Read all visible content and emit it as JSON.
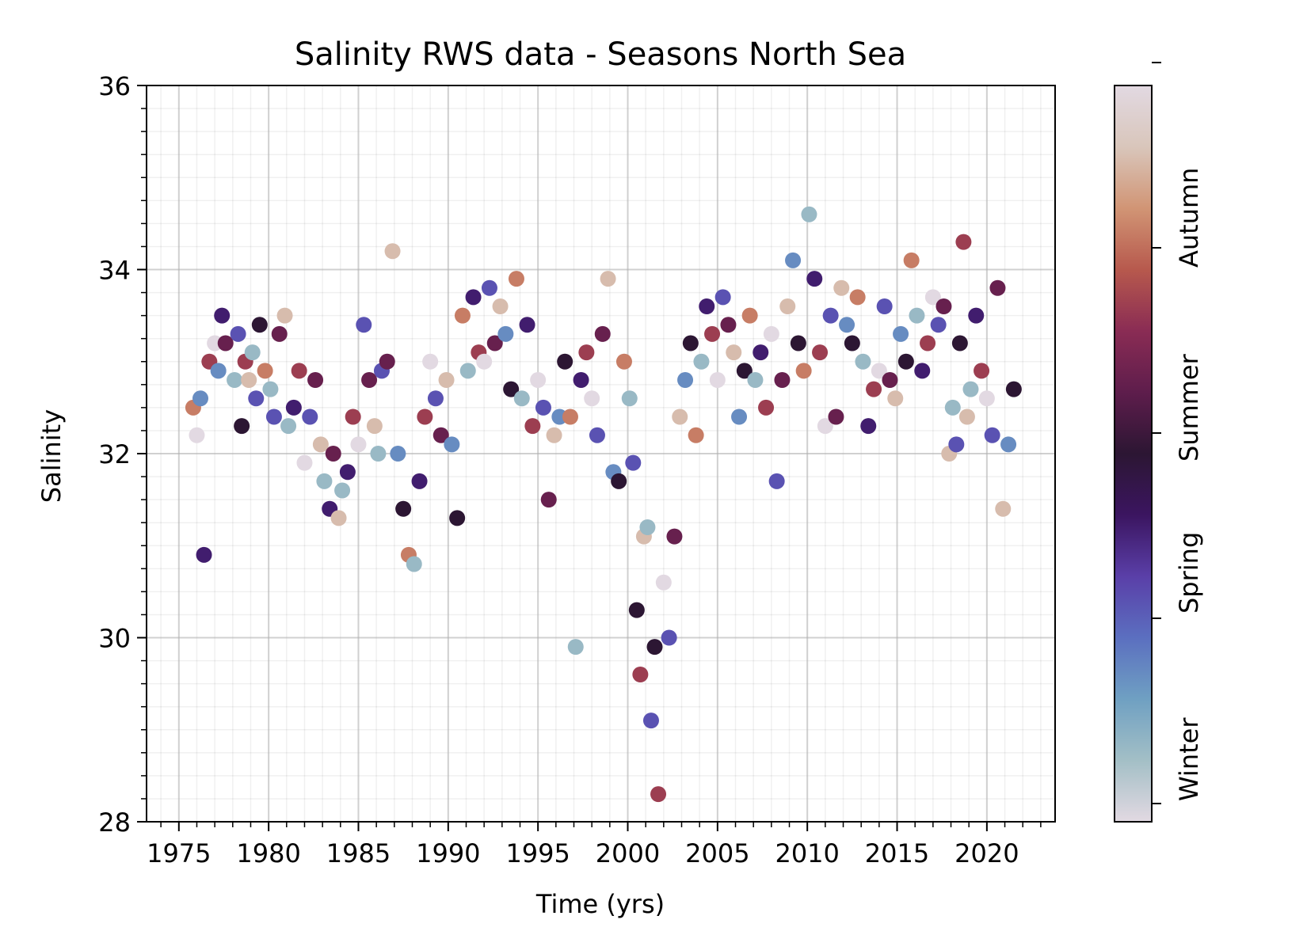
{
  "chart_data": {
    "type": "scatter",
    "title": "Salinity RWS data - Seasons North Sea",
    "xlabel": "Time (yrs)",
    "ylabel": "Salinity",
    "xlim": [
      1973.2,
      2023.8
    ],
    "ylim": [
      28,
      36
    ],
    "x_ticks": [
      1975,
      1980,
      1985,
      1990,
      1995,
      2000,
      2005,
      2010,
      2015,
      2020
    ],
    "y_ticks": [
      28,
      30,
      32,
      34,
      36
    ],
    "grid": true,
    "minor_grid": true,
    "colorbar": {
      "colormap": "twilight-like (winter → spring → summer → autumn)",
      "labels": [
        "Winter",
        "Spring",
        "Summer",
        "Autumn"
      ],
      "stops": [
        "#e2d9e2",
        "#a3bfc6",
        "#6fa0c2",
        "#5b6fc0",
        "#5a3fa8",
        "#3b1560",
        "#2c1633",
        "#5e1d4c",
        "#8a2c54",
        "#b7594d",
        "#d19575",
        "#d9c6bb",
        "#e2d9e2"
      ]
    },
    "series": [
      {
        "x": [
          1975.8,
          1976.0,
          1976.2,
          1976.4,
          1976.7,
          1977.0,
          1977.2,
          1977.4,
          1977.6,
          1978.1,
          1978.3,
          1978.5,
          1978.7,
          1978.9,
          1979.1,
          1979.3,
          1979.5,
          1979.8,
          1980.1,
          1980.3,
          1980.6,
          1980.9,
          1981.1,
          1981.4,
          1981.7,
          1982.0,
          1982.3,
          1982.6,
          1982.9,
          1983.1,
          1983.4,
          1983.6,
          1983.9,
          1984.1,
          1984.4,
          1984.7,
          1985.0,
          1985.3,
          1985.6,
          1985.9,
          1986.1,
          1986.3,
          1986.6,
          1986.9,
          1987.2,
          1987.5,
          1987.8,
          1988.1,
          1988.4,
          1988.7,
          1989.0,
          1989.3,
          1989.6,
          1989.9,
          1990.2,
          1990.5,
          1990.8,
          1991.1,
          1991.4,
          1991.7,
          1992.0,
          1992.3,
          1992.6,
          1992.9,
          1993.2,
          1993.5,
          1993.8,
          1994.1,
          1994.4,
          1994.7,
          1995.0,
          1995.3,
          1995.6,
          1995.9,
          1996.2,
          1996.5,
          1996.8,
          1997.1,
          1997.4,
          1997.7,
          1998.0,
          1998.3,
          1998.6,
          1998.9,
          1999.2,
          1999.5,
          1999.8,
          2000.1,
          2000.3,
          2000.5,
          2000.7,
          2000.9,
          2001.1,
          2001.3,
          2001.5,
          2001.7,
          2002.0,
          2002.3,
          2002.6,
          2002.9,
          2003.2,
          2003.5,
          2003.8,
          2004.1,
          2004.4,
          2004.7,
          2005.0,
          2005.3,
          2005.6,
          2005.9,
          2006.2,
          2006.5,
          2006.8,
          2007.1,
          2007.4,
          2007.7,
          2008.0,
          2008.3,
          2008.6,
          2008.9,
          2009.2,
          2009.5,
          2009.8,
          2010.1,
          2010.4,
          2010.7,
          2011.0,
          2011.3,
          2011.6,
          2011.9,
          2012.2,
          2012.5,
          2012.8,
          2013.1,
          2013.4,
          2013.7,
          2014.0,
          2014.3,
          2014.6,
          2014.9,
          2015.2,
          2015.5,
          2015.8,
          2016.1,
          2016.4,
          2016.7,
          2017.0,
          2017.3,
          2017.6,
          2017.9,
          2018.1,
          2018.3,
          2018.5,
          2018.7,
          2018.9,
          2019.1,
          2019.4,
          2019.7,
          2020.0,
          2020.3,
          2020.6,
          2020.9,
          2021.2,
          2021.5
        ],
        "y": [
          32.5,
          32.2,
          32.6,
          30.9,
          33.0,
          33.2,
          32.9,
          33.5,
          33.2,
          32.8,
          33.3,
          32.3,
          33.0,
          32.8,
          33.1,
          32.6,
          33.4,
          32.9,
          32.7,
          32.4,
          33.3,
          33.5,
          32.3,
          32.5,
          32.9,
          31.9,
          32.4,
          32.8,
          32.1,
          31.7,
          31.4,
          32.0,
          31.3,
          31.6,
          31.8,
          32.4,
          32.1,
          33.4,
          32.8,
          32.3,
          32.0,
          32.9,
          33.0,
          34.2,
          32.0,
          31.4,
          30.9,
          30.8,
          31.7,
          32.4,
          33.0,
          32.6,
          32.2,
          32.8,
          32.1,
          31.3,
          33.5,
          32.9,
          33.7,
          33.1,
          33.0,
          33.8,
          33.2,
          33.6,
          33.3,
          32.7,
          33.9,
          32.6,
          33.4,
          32.3,
          32.8,
          32.5,
          31.5,
          32.2,
          32.4,
          33.0,
          32.4,
          29.9,
          32.8,
          33.1,
          32.6,
          32.2,
          33.3,
          33.9,
          31.8,
          31.7,
          33.0,
          32.6,
          31.9,
          30.3,
          29.6,
          31.1,
          31.2,
          29.1,
          29.9,
          28.3,
          30.6,
          30.0,
          31.1,
          32.4,
          32.8,
          33.2,
          32.2,
          33.0,
          33.6,
          33.3,
          32.8,
          33.7,
          33.4,
          33.1,
          32.4,
          32.9,
          33.5,
          32.8,
          33.1,
          32.5,
          33.3,
          31.7,
          32.8,
          33.6,
          34.1,
          33.2,
          32.9,
          34.6,
          33.9,
          33.1,
          32.3,
          33.5,
          32.4,
          33.8,
          33.4,
          33.2,
          33.7,
          33.0,
          32.3,
          32.7,
          32.9,
          33.6,
          32.8,
          32.6,
          33.3,
          33.0,
          34.1,
          33.5,
          32.9,
          33.2,
          33.7,
          33.4,
          33.6,
          32.0,
          32.5,
          32.1,
          33.2,
          34.3,
          32.4,
          32.7,
          33.5,
          32.9,
          32.6,
          32.2,
          33.8,
          31.4,
          32.1,
          32.7
        ]
      }
    ]
  }
}
